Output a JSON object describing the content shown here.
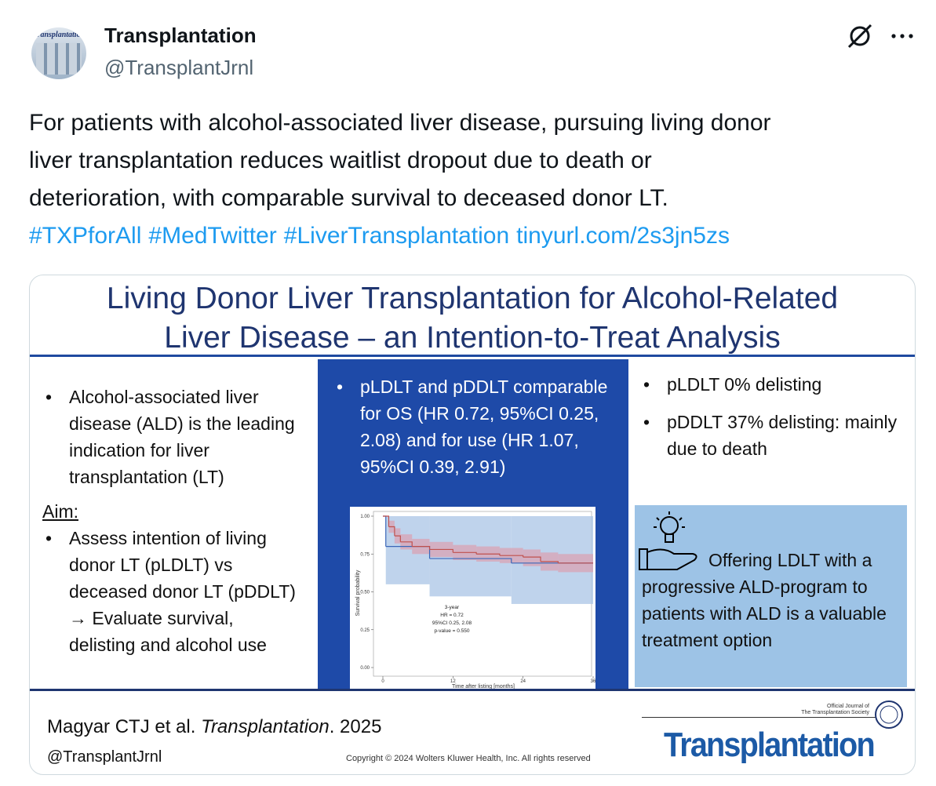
{
  "tweet": {
    "author": {
      "name": "Transplantation",
      "handle": "@TransplantJrnl"
    },
    "text_lines": [
      "For patients with alcohol-associated liver disease, pursuing living donor",
      "liver transplantation reduces waitlist dropout due to death or",
      "deterioration, with comparable survival to deceased donor LT."
    ],
    "links": [
      "#TXPforAll",
      "#MedTwitter",
      "#LiverTransplantation",
      "tinyurl.com/2s3jn5zs"
    ]
  },
  "infographic": {
    "title_lines": [
      "Living Donor Liver Transplantation for Alcohol-Related",
      "Liver Disease – an Intention-to-Treat Analysis"
    ],
    "left": {
      "bullets": [
        "Alcohol-associated liver disease (ALD) is the leading indication for liver transplantation (LT)"
      ],
      "aim_heading": "Aim:",
      "aim_bullets": [
        "Assess intention of living donor LT (pLDLT) vs deceased donor LT (pDDLT) → Evaluate survival, delisting and alcohol use"
      ]
    },
    "middle": {
      "bullets": [
        "pLDLT and pDDLT comparable for OS (HR 0.72, 95%CI 0.25, 2.08) and for use (HR 1.07, 95%CI 0.39, 2.91)"
      ]
    },
    "plot": {
      "type": "line",
      "xlabel": "Time after listing [months]",
      "ylabel": "Survival probability",
      "xlim": [
        0,
        36
      ],
      "ylim": [
        0,
        1
      ],
      "xticks": [
        0,
        12,
        24,
        36
      ],
      "yticks": [
        {
          "value": 0,
          "label": "0.00"
        },
        {
          "value": 0.25,
          "label": "0.25"
        },
        {
          "value": 0.5,
          "label": "0.50"
        },
        {
          "value": 0.75,
          "label": "0.75"
        },
        {
          "value": 1,
          "label": "1.00"
        }
      ],
      "annotation": [
        "3-year",
        "HR = 0.72",
        "95%CI 0.25, 2.08",
        "p-value = 0.550"
      ],
      "series": [
        {
          "color": "#3a66b8",
          "band_color": "#a9c4e6",
          "x": [
            0,
            0.5,
            8,
            22,
            36
          ],
          "values": [
            1.0,
            0.8,
            0.72,
            0.69,
            0.69
          ],
          "lower": [
            1.0,
            0.55,
            0.47,
            0.42,
            0.42
          ],
          "upper": [
            1.0,
            1.0,
            1.0,
            1.0,
            1.0
          ]
        },
        {
          "color": "#c0504d",
          "band_color": "#d9a3b4",
          "x": [
            0,
            1,
            2,
            3,
            5,
            8,
            12,
            16,
            20,
            24,
            27,
            30,
            36
          ],
          "values": [
            1.0,
            0.93,
            0.87,
            0.83,
            0.8,
            0.78,
            0.76,
            0.75,
            0.74,
            0.73,
            0.7,
            0.69,
            0.69
          ],
          "lower": [
            1.0,
            0.89,
            0.82,
            0.78,
            0.75,
            0.73,
            0.71,
            0.7,
            0.69,
            0.67,
            0.64,
            0.63,
            0.63
          ],
          "upper": [
            1.0,
            0.97,
            0.92,
            0.88,
            0.85,
            0.83,
            0.81,
            0.8,
            0.79,
            0.78,
            0.76,
            0.75,
            0.75
          ]
        }
      ]
    },
    "right": {
      "bullets": [
        "pLDLT 0% delisting",
        "pDDLT 37% delisting: mainly due to death"
      ],
      "conclusion": "Offering LDLT with a progressive ALD-program to patients with ALD is a valuable treatment option"
    },
    "footer": {
      "citation_author": "Magyar CTJ et al. ",
      "citation_journal": "Transplantation",
      "citation_year": ". 2025",
      "handle": "@TransplantJrnl",
      "copyright": "Copyright © 2024 Wolters Kluwer Health, Inc. All rights reserved",
      "logo_tagline": [
        "Official Journal of",
        "The Transplantation Society"
      ],
      "logo": "Transplantation"
    }
  }
}
